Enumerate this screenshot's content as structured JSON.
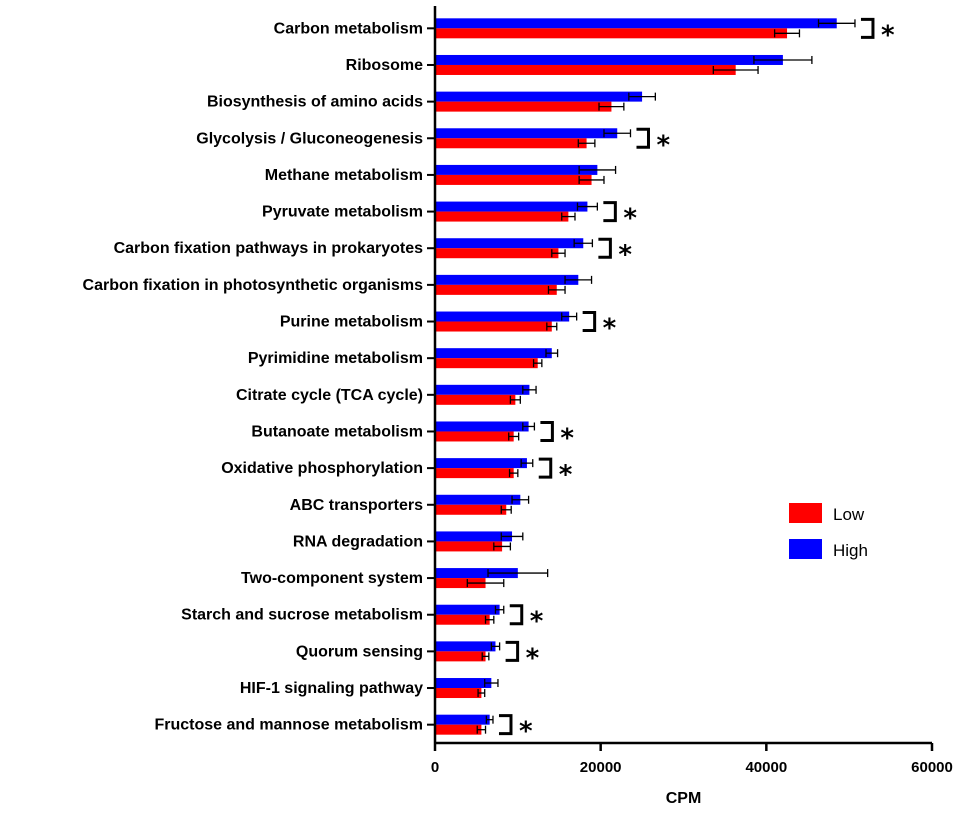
{
  "chart_data": {
    "type": "bar",
    "orientation": "horizontal",
    "xlabel": "CPM",
    "xlim": [
      0,
      60000
    ],
    "xticks": [
      "0",
      "20000",
      "40000",
      "60000"
    ],
    "xtick_values": [
      0,
      20000,
      40000,
      60000
    ],
    "grid": false,
    "legend_position": "right",
    "categories": [
      "Carbon metabolism",
      "Ribosome",
      "Biosynthesis of amino acids",
      "Glycolysis / Gluconeogenesis",
      "Methane metabolism",
      "Pyruvate metabolism",
      "Carbon fixation pathways in prokaryotes",
      "Carbon fixation in photosynthetic organisms",
      "Purine metabolism",
      "Pyrimidine metabolism",
      "Citrate cycle (TCA cycle)",
      "Butanoate metabolism",
      "Oxidative phosphorylation",
      "ABC transporters",
      "RNA degradation",
      "Two-component system",
      "Starch and sucrose metabolism",
      "Quorum sensing",
      "HIF-1 signaling pathway",
      "Fructose and mannose metabolism"
    ],
    "series": [
      {
        "name": "High",
        "color": "#0000ff",
        "values": [
          48500,
          42000,
          25000,
          22000,
          19600,
          18400,
          17900,
          17300,
          16200,
          14100,
          11400,
          11300,
          11100,
          10300,
          9300,
          10000,
          7800,
          7300,
          6800,
          6600
        ],
        "errors": [
          2200,
          3500,
          1600,
          1600,
          2200,
          1200,
          1100,
          1600,
          900,
          700,
          800,
          700,
          700,
          1000,
          1300,
          3600,
          500,
          500,
          800,
          400
        ]
      },
      {
        "name": "Low",
        "color": "#ff0000",
        "values": [
          42500,
          36300,
          21300,
          18300,
          18900,
          16100,
          14900,
          14700,
          14100,
          12400,
          9700,
          9500,
          9500,
          8600,
          8100,
          6100,
          6600,
          6100,
          5600,
          5600
        ],
        "errors": [
          1500,
          2700,
          1500,
          1000,
          1500,
          800,
          800,
          1000,
          600,
          500,
          600,
          600,
          500,
          600,
          1000,
          2200,
          500,
          400,
          400,
          500
        ]
      }
    ],
    "annotations": [
      {
        "category_index": 0,
        "text": "*"
      },
      {
        "category_index": 3,
        "text": "*"
      },
      {
        "category_index": 5,
        "text": "*"
      },
      {
        "category_index": 6,
        "text": "*"
      },
      {
        "category_index": 8,
        "text": "*"
      },
      {
        "category_index": 11,
        "text": "*"
      },
      {
        "category_index": 12,
        "text": "*"
      },
      {
        "category_index": 16,
        "text": "*"
      },
      {
        "category_index": 17,
        "text": "*"
      },
      {
        "category_index": 19,
        "text": "*"
      }
    ]
  }
}
